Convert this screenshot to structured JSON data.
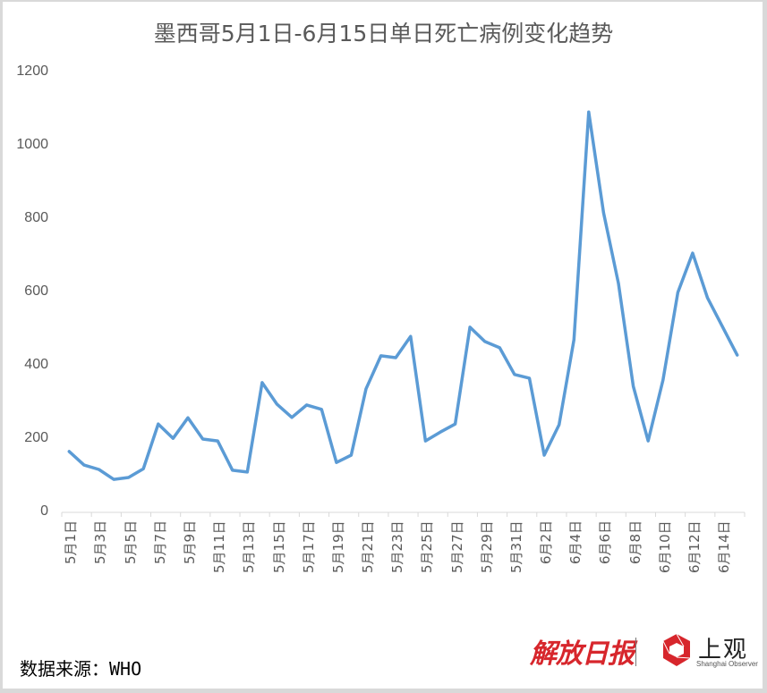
{
  "title": "墨西哥5月1日-6月15日单日死亡病例变化趋势",
  "source": "数据来源：WHO",
  "logos": {
    "jiefang": "解放日报",
    "shangguan": "上观",
    "shangguan_en": "Shanghai Observer"
  },
  "colors": {
    "line": "#5b9bd5",
    "axis_text": "#595959",
    "axis_line": "#d9d9d9",
    "logo_red": "#d7262c"
  },
  "chart_data": {
    "type": "line",
    "title": "墨西哥5月1日-6月15日单日死亡病例变化趋势",
    "xlabel": "",
    "ylabel": "",
    "ylim": [
      0,
      1200
    ],
    "yticks": [
      0,
      200,
      400,
      600,
      800,
      1000,
      1200
    ],
    "grid": false,
    "legend": "none",
    "categories": [
      "5月1日",
      "5月2日",
      "5月3日",
      "5月4日",
      "5月5日",
      "5月6日",
      "5月7日",
      "5月8日",
      "5月9日",
      "5月10日",
      "5月11日",
      "5月12日",
      "5月13日",
      "5月14日",
      "5月15日",
      "5月16日",
      "5月17日",
      "5月18日",
      "5月19日",
      "5月20日",
      "5月21日",
      "5月22日",
      "5月23日",
      "5月24日",
      "5月25日",
      "5月26日",
      "5月27日",
      "5月28日",
      "5月29日",
      "5月30日",
      "5月31日",
      "6月1日",
      "6月2日",
      "6月3日",
      "6月4日",
      "6月5日",
      "6月6日",
      "6月7日",
      "6月8日",
      "6月9日",
      "6月10日",
      "6月11日",
      "6月12日",
      "6月13日",
      "6月14日",
      "6月15日"
    ],
    "visible_tick_labels": [
      "5月1日",
      "5月3日",
      "5月5日",
      "5月7日",
      "5月9日",
      "5月11日",
      "5月13日",
      "5月15日",
      "5月17日",
      "5月19日",
      "5月21日",
      "5月23日",
      "5月25日",
      "5月27日",
      "5月29日",
      "5月31日",
      "6月2日",
      "6月4日",
      "6月6日",
      "6月8日",
      "6月10日",
      "6月12日",
      "6月14日"
    ],
    "series": [
      {
        "name": "单日死亡病例",
        "values": [
          166,
          129,
          117,
          90,
          95,
          119,
          241,
          202,
          258,
          200,
          195,
          115,
          110,
          354,
          295,
          259,
          293,
          281,
          136,
          156,
          337,
          427,
          422,
          480,
          195,
          219,
          241,
          505,
          466,
          449,
          376,
          366,
          156,
          239,
          471,
          1092,
          817,
          625,
          344,
          195,
          361,
          600,
          707,
          585,
          507,
          429
        ]
      }
    ]
  }
}
